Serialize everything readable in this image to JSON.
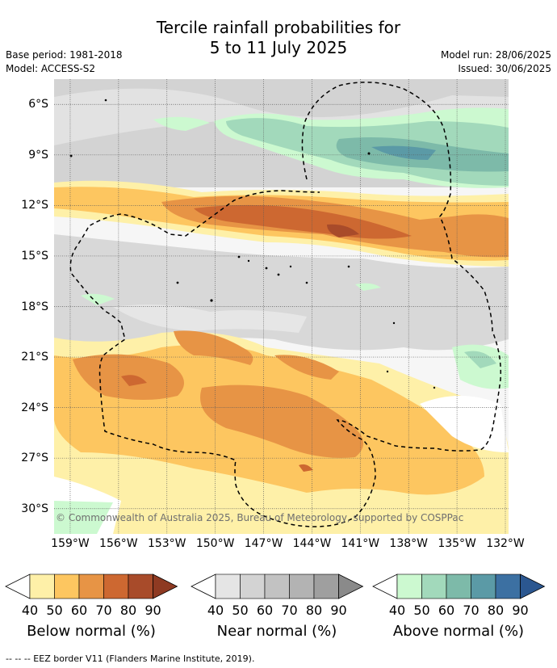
{
  "title": {
    "line1": "Tercile rainfall probabilities for",
    "line2": "5 to 11 July 2025"
  },
  "meta": {
    "base_period": "Base period: 1981-2018",
    "model": "Model: ACCESS-S2",
    "model_run": "Model run: 28/06/2025",
    "issued": "Issued: 30/06/2025"
  },
  "map": {
    "lon_labels": [
      "159°W",
      "156°W",
      "153°W",
      "150°W",
      "147°W",
      "144°W",
      "141°W",
      "138°W",
      "135°W",
      "132°W"
    ],
    "lat_labels": [
      "6°S",
      "9°S",
      "12°S",
      "15°S",
      "18°S",
      "21°S",
      "24°S",
      "27°S",
      "30°S"
    ],
    "extent": {
      "lon_min": -160.0,
      "lon_max": -131.8,
      "lat_min": -31.5,
      "lat_max": -4.5
    },
    "copyright": "© Commonwealth of Australia 2025, Bureau of Meteorology, supported by COSPPac",
    "grid": true,
    "eez_border_style": "dashed"
  },
  "colorbars": [
    {
      "title": "Below normal (%)",
      "ticks": [
        "40",
        "50",
        "60",
        "70",
        "80",
        "90"
      ],
      "colors": [
        "#fef0a8",
        "#fdc660",
        "#e79445",
        "#cd6831",
        "#a84b2a",
        "#8e3a22"
      ]
    },
    {
      "title": "Near normal (%)",
      "ticks": [
        "40",
        "50",
        "60",
        "70",
        "80",
        "90"
      ],
      "colors": [
        "#e5e5e5",
        "#d3d3d3",
        "#c2c2c2",
        "#b3b3b3",
        "#9f9f9f",
        "#8a8a8a"
      ]
    },
    {
      "title": "Above normal (%)",
      "ticks": [
        "40",
        "50",
        "60",
        "70",
        "80",
        "90"
      ],
      "colors": [
        "#ccf9d0",
        "#a2d9bb",
        "#7dbaa9",
        "#5b9aa6",
        "#3c70a2",
        "#2b5790"
      ]
    }
  ],
  "footer": "--  --  -- EEZ border V11 (Flanders Marine Institute, 2019)."
}
